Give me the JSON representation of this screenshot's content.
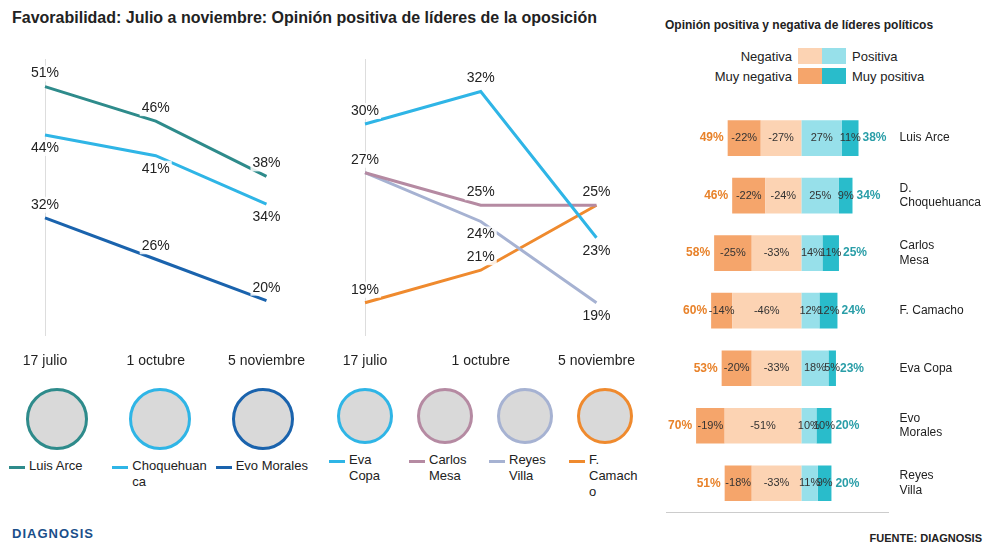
{
  "header": {
    "title": "Favorabilidad: Julio a noviembre: Opinión positiva de líderes de la oposición",
    "logo": "DIAGNOSIS",
    "source": "FUENTE: DIAGNOSIS"
  },
  "chart_data": [
    {
      "type": "line",
      "categories": [
        "17 julio",
        "1 octubre",
        "5 noviembre"
      ],
      "ylim": [
        15,
        55
      ],
      "tick_labels": "x",
      "grid": false,
      "legend": "bottom",
      "data_labels": true,
      "marker": "none",
      "series": [
        {
          "name": "Luis Arce",
          "color": "#2e8b8b",
          "values": [
            51,
            46,
            38
          ],
          "value_labels": [
            "51%",
            "46%",
            "38%"
          ]
        },
        {
          "name": "Choquehuanca",
          "color": "#2fb5e6",
          "values": [
            44,
            41,
            34
          ],
          "value_labels": [
            "44%",
            "41%",
            "34%"
          ]
        },
        {
          "name": "Evo Morales",
          "color": "#1a63ad",
          "values": [
            32,
            26,
            20
          ],
          "value_labels": [
            "32%",
            "26%",
            "20%"
          ]
        }
      ]
    },
    {
      "type": "line",
      "categories": [
        "17 julio",
        "1 octubre",
        "5 noviembre"
      ],
      "ylim": [
        17,
        34
      ],
      "tick_labels": "x",
      "grid": false,
      "legend": "bottom",
      "data_labels": true,
      "marker": "none",
      "series": [
        {
          "name": "Eva Copa",
          "color": "#2fb5e6",
          "values": [
            30,
            32,
            23
          ],
          "value_labels": [
            "30%",
            "32%",
            "23%"
          ]
        },
        {
          "name": "Carlos Mesa",
          "color": "#b58aa2",
          "values": [
            27,
            25,
            25
          ],
          "value_labels": [
            "27%",
            "25%",
            "25%"
          ]
        },
        {
          "name": "Reyes Villa",
          "color": "#a6b2d2",
          "values": [
            27,
            24,
            19
          ],
          "value_labels": [
            null,
            "24%",
            "19%"
          ]
        },
        {
          "name": "F. Camacho",
          "color": "#ef8a2e",
          "values": [
            19,
            21,
            25
          ],
          "value_labels": [
            "19%",
            "21%",
            null
          ]
        }
      ]
    },
    {
      "type": "bar",
      "title": "Opinión positiva y negativa de líderes políticos",
      "orientation": "horizontal",
      "stacked": true,
      "grid": false,
      "legend": "top",
      "data_labels": true,
      "tick_labels": "y",
      "categories": [
        "Luis Arce",
        "D. Choquehuanca",
        "Carlos Mesa",
        "F. Camacho",
        "Eva Copa",
        "Evo Morales",
        "Reyes Villa"
      ],
      "xlim": [
        -90,
        58
      ],
      "series": [
        {
          "name": "Negativa",
          "color": "#fcd3b3",
          "values": [
            -27,
            -24,
            -33,
            -46,
            -33,
            -51,
            -33
          ],
          "value_labels": [
            "-27%",
            "-24%",
            "-33%",
            "-46%",
            "-33%",
            "-51%",
            "-33%"
          ]
        },
        {
          "name": "Muy negativa",
          "color": "#f5a56b",
          "values": [
            -22,
            -22,
            -25,
            -14,
            -20,
            -19,
            -18
          ],
          "value_labels": [
            "-22%",
            "-22%",
            "-25%",
            "-14%",
            "-20%",
            "-19%",
            "-18%"
          ]
        },
        {
          "name": "Positiva",
          "color": "#97e0ea",
          "values": [
            27,
            25,
            14,
            12,
            18,
            10,
            11
          ],
          "value_labels": [
            "27%",
            "25%",
            "14%",
            "12%",
            "18%",
            "10%",
            "11%"
          ]
        },
        {
          "name": "Muy positiva",
          "color": "#29bccb",
          "values": [
            11,
            9,
            11,
            12,
            5,
            10,
            9
          ],
          "value_labels": [
            "11%",
            "9%",
            "11%",
            "12%",
            "5%",
            "10%",
            "9%"
          ]
        }
      ],
      "negative_totals": {
        "color": "#e8822a",
        "values": [
          49,
          46,
          58,
          60,
          53,
          70,
          51
        ],
        "value_labels": [
          "49%",
          "46%",
          "58%",
          "60%",
          "53%",
          "70%",
          "51%"
        ]
      },
      "positive_totals": {
        "color": "#2a9ea8",
        "values": [
          38,
          34,
          25,
          24,
          23,
          20,
          20
        ],
        "value_labels": [
          "38%",
          "34%",
          "25%",
          "24%",
          "23%",
          "20%",
          "20%"
        ]
      }
    }
  ]
}
